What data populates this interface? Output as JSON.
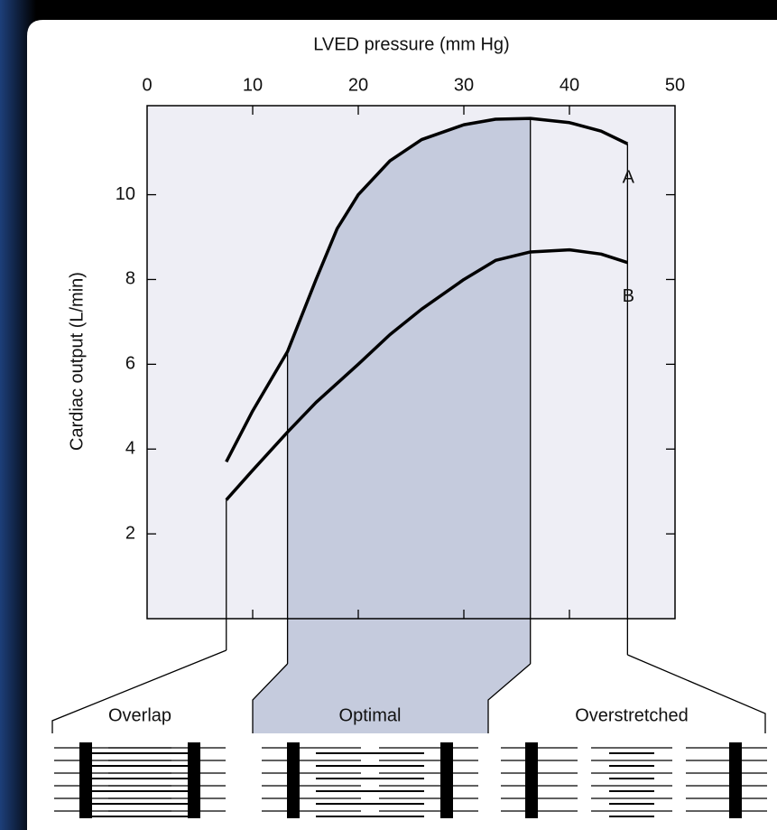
{
  "chart_data": {
    "type": "line",
    "x_label": "LVED pressure (mm Hg)",
    "y_label": "Cardiac output (L/min)",
    "x": [
      7.5,
      10,
      13.3,
      16,
      18,
      20,
      23,
      26,
      30,
      33,
      36.3,
      40,
      43,
      45.5
    ],
    "series": [
      {
        "name": "A",
        "color": "#000000",
        "values": [
          3.7,
          4.9,
          6.3,
          8.0,
          9.2,
          10.0,
          10.8,
          11.3,
          11.65,
          11.78,
          11.8,
          11.7,
          11.5,
          11.2
        ]
      },
      {
        "name": "B",
        "color": "#000000",
        "values": [
          2.8,
          3.5,
          4.4,
          5.1,
          5.55,
          6.0,
          6.7,
          7.3,
          8.0,
          8.45,
          8.65,
          8.7,
          8.6,
          8.4
        ]
      }
    ],
    "xlim": [
      0,
      50
    ],
    "xticks": [
      0,
      10,
      20,
      30,
      40,
      50
    ],
    "ylim": [
      0,
      12.1
    ],
    "yticks": [
      2,
      4,
      6,
      8,
      10
    ],
    "zones": [
      {
        "label": "Overlap",
        "xrange": [
          7.5,
          13.3
        ]
      },
      {
        "label": "Optimal",
        "xrange": [
          13.3,
          36.3
        ],
        "color": "#c5cbdd"
      },
      {
        "label": "Overstretched",
        "xrange": [
          36.3,
          45.5
        ]
      }
    ]
  }
}
